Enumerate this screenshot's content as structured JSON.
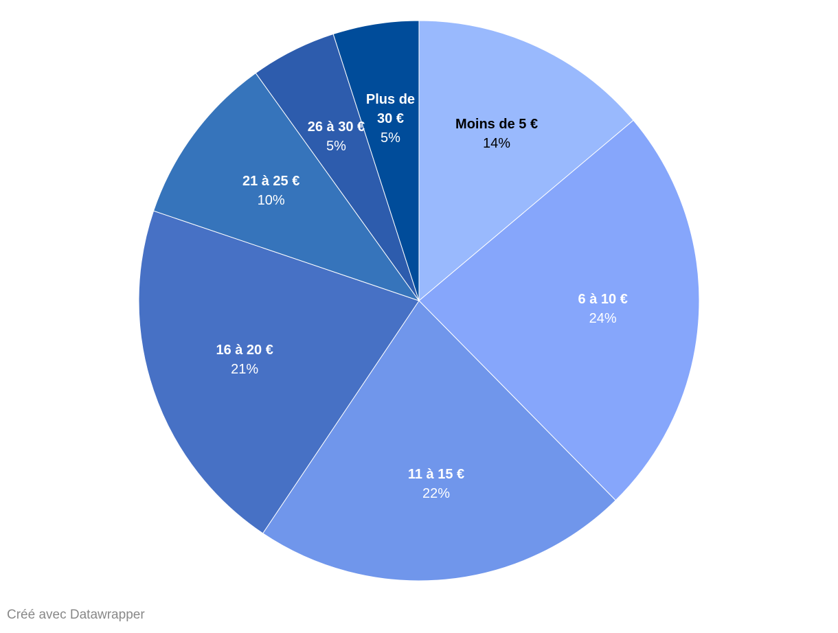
{
  "chart_data": {
    "type": "pie",
    "categories": [
      "Moins de 5 €",
      "6 à 10 €",
      "11 à 15 €",
      "16 à 20 €",
      "21 à 25 €",
      "26 à 30 €",
      "Plus de 30 €"
    ],
    "values": [
      14,
      24,
      22,
      21,
      10,
      5,
      5
    ],
    "value_labels": [
      "14%",
      "24%",
      "22%",
      "21%",
      "10%",
      "5%",
      "5%"
    ],
    "colors": [
      "#99b9fd",
      "#86a6fb",
      "#7096eb",
      "#4771c5",
      "#3674bb",
      "#2d5cad",
      "#004c9a"
    ]
  },
  "footer": "Créé avec Datawrapper"
}
